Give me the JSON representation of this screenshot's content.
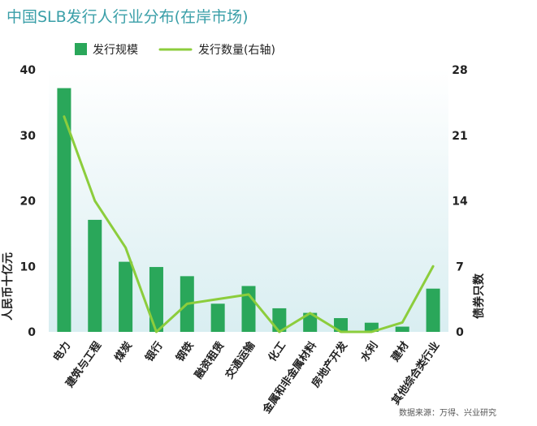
{
  "title": "中国SLB发行人行业分布(在岸市场)",
  "source": "数据来源：万得、兴业研究",
  "colors": {
    "bar": "#2aa75a",
    "line": "#8ccd3c",
    "title": "#3a9fa8",
    "plot_bg_top": "#ffffff",
    "plot_bg_bottom": "#d9eef1"
  },
  "chart_data": {
    "type": "bar",
    "categories": [
      "电力",
      "建筑与工程",
      "煤炭",
      "银行",
      "钢铁",
      "融资租赁",
      "交通运输",
      "化工",
      "金属和非金属材料",
      "房地产开发",
      "水利",
      "建材",
      "其他综合类行业"
    ],
    "series": [
      {
        "name": "发行规模",
        "type": "bar",
        "axis": "left",
        "values": [
          37.2,
          17.1,
          10.7,
          9.9,
          8.5,
          4.3,
          7.0,
          3.6,
          2.9,
          2.1,
          1.4,
          0.8,
          6.6
        ]
      },
      {
        "name": "发行数量(右轴)",
        "type": "line",
        "axis": "right",
        "values": [
          23,
          14,
          9,
          0,
          3,
          3.5,
          4,
          0,
          2,
          0,
          0,
          1,
          7
        ]
      }
    ],
    "ylabel": "人民币十亿元",
    "y2label": "债券只数",
    "ylim": [
      0,
      40
    ],
    "yticks": [
      0,
      10,
      20,
      30,
      40
    ],
    "y2lim": [
      0,
      28
    ],
    "y2ticks": [
      0,
      7,
      14,
      21,
      28
    ],
    "legend_position": "top-left",
    "grid": false
  }
}
